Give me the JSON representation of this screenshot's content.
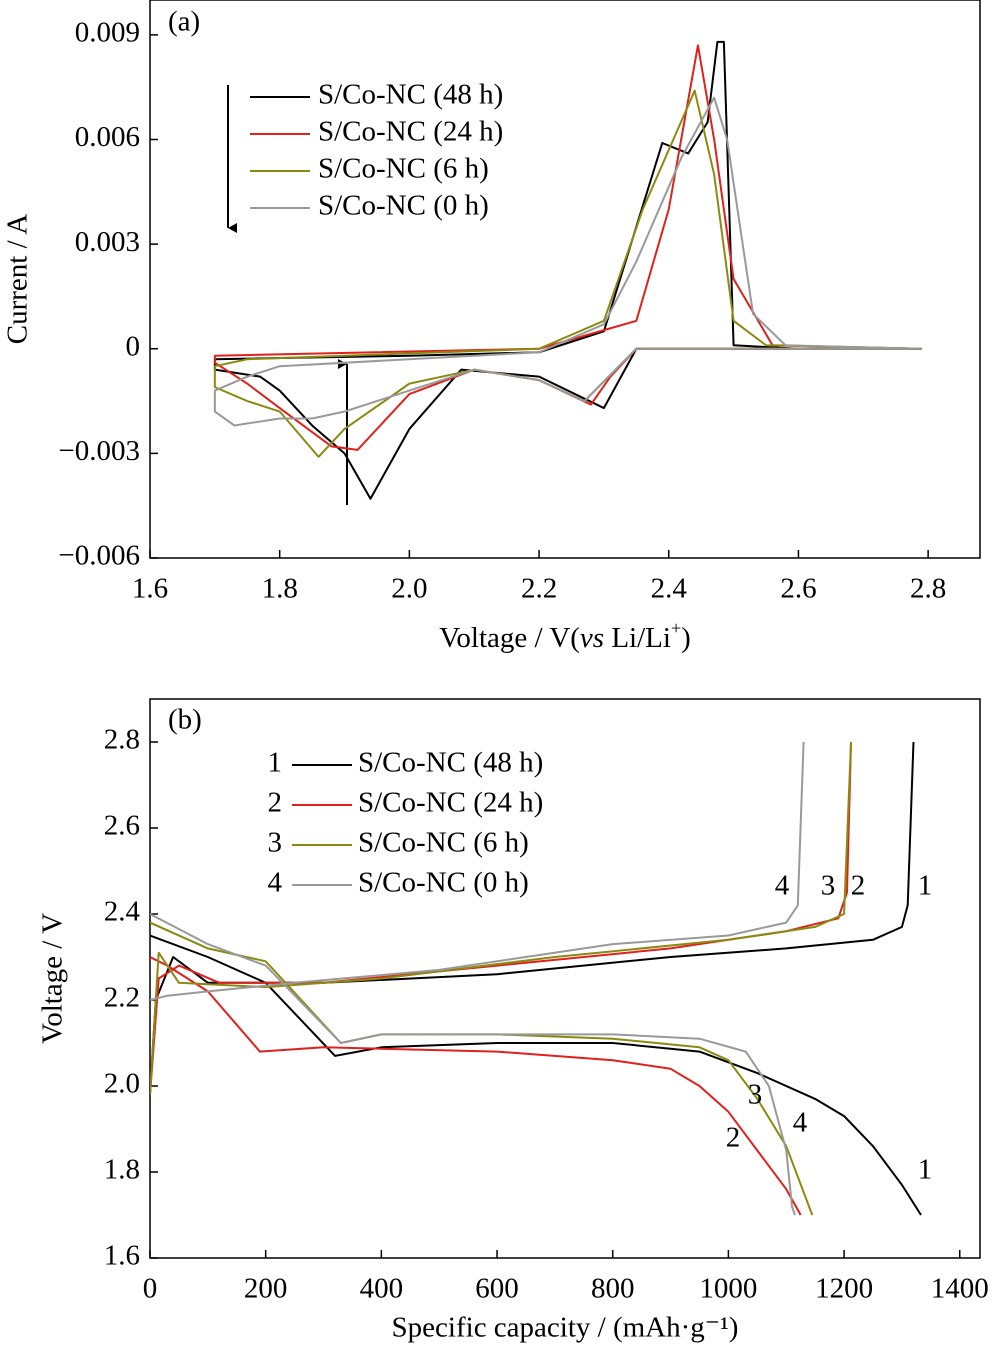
{
  "chart_data": [
    {
      "type": "line",
      "title": "(a)",
      "x_label": [
        "Voltage / V(",
        "vs",
        " Li/Li",
        "+",
        ")"
      ],
      "y_label": "Current / A",
      "xlim": [
        1.6,
        2.88
      ],
      "ylim": [
        -0.006,
        0.01
      ],
      "xticks": [
        1.6,
        1.8,
        {
          "value": 2,
          "label": "2.0"
        },
        2.2,
        2.4,
        2.6,
        2.8
      ],
      "yticks": [
        {
          "value": -0.006,
          "label": "−0.006"
        },
        {
          "value": -0.003,
          "label": "−0.003"
        },
        0,
        0.003,
        0.006,
        0.009
      ],
      "series": [
        {
          "name": "S/Co-NC (48 h)",
          "color": "#000000",
          "x": [
            2.79,
            2.35,
            2.3,
            2.2,
            2.08,
            2.0,
            1.94,
            1.9,
            1.85,
            1.8,
            1.77,
            1.7,
            1.7,
            2.0,
            2.2,
            2.3,
            2.35,
            2.39,
            2.43,
            2.46,
            2.475,
            2.485,
            2.5,
            2.6,
            2.79
          ],
          "values": [
            0,
            0,
            -0.0017,
            -0.0008,
            -0.0006,
            -0.0023,
            -0.0043,
            -0.003,
            -0.0022,
            -0.0012,
            -0.0008,
            -0.0006,
            -0.0003,
            -0.0002,
            -0.0001,
            0.0005,
            0.0035,
            0.0059,
            0.0056,
            0.0065,
            0.0088,
            0.0088,
            0.0001,
            0,
            0
          ]
        },
        {
          "name": "S/Co-NC (24 h)",
          "color": "#e0201c",
          "x": [
            2.79,
            2.35,
            2.31,
            2.28,
            2.2,
            2.1,
            2.0,
            1.92,
            1.88,
            1.8,
            1.75,
            1.7,
            1.7,
            2.2,
            2.35,
            2.4,
            2.445,
            2.47,
            2.5,
            2.56,
            2.79
          ],
          "values": [
            0,
            0,
            -0.0008,
            -0.0016,
            -0.0009,
            -0.0006,
            -0.0013,
            -0.0029,
            -0.0028,
            -0.0017,
            -0.001,
            -0.0004,
            -0.0002,
            0,
            0.0008,
            0.004,
            0.0087,
            0.006,
            0.002,
            0.0001,
            0
          ]
        },
        {
          "name": "S/Co-NC (6 h)",
          "color": "#8b8a10",
          "x": [
            2.79,
            2.35,
            2.27,
            2.2,
            2.1,
            2.0,
            1.9,
            1.86,
            1.8,
            1.75,
            1.7,
            1.7,
            1.75,
            2.2,
            2.3,
            2.36,
            2.44,
            2.47,
            2.5,
            2.55,
            2.79
          ],
          "values": [
            0,
            0,
            -0.0015,
            -0.0009,
            -0.0006,
            -0.001,
            -0.0023,
            -0.0031,
            -0.0018,
            -0.0015,
            -0.0011,
            -0.0005,
            -0.0003,
            0,
            0.0008,
            0.004,
            0.0074,
            0.005,
            0.0008,
            0.0001,
            0
          ]
        },
        {
          "name": "S/Co-NC (0 h)",
          "color": "#999999",
          "x": [
            2.79,
            2.35,
            2.27,
            2.2,
            2.1,
            2.0,
            1.9,
            1.85,
            1.8,
            1.73,
            1.7,
            1.7,
            1.75,
            1.8,
            2.2,
            2.3,
            2.35,
            2.42,
            2.47,
            2.49,
            2.53,
            2.58,
            2.79
          ],
          "values": [
            0,
            0,
            -0.0015,
            -0.0009,
            -0.0006,
            -0.0012,
            -0.0018,
            -0.002,
            -0.002,
            -0.0022,
            -0.0018,
            -0.0012,
            -0.0008,
            -0.0005,
            -0.0001,
            0.0007,
            0.0025,
            0.0055,
            0.0072,
            0.006,
            0.001,
            0.0001,
            0
          ]
        }
      ]
    },
    {
      "type": "line",
      "title": "(b)",
      "x_label": "Specific capacity / (mAh·g⁻¹)",
      "y_label": "Voltage / V",
      "xlim": [
        0,
        1435
      ],
      "ylim": [
        1.6,
        2.9
      ],
      "xticks": [
        0,
        200,
        400,
        600,
        800,
        1000,
        1200,
        1400
      ],
      "yticks": [
        1.6,
        1.8,
        {
          "value": 2,
          "label": "2.0"
        },
        2.2,
        2.4,
        2.6,
        2.8
      ],
      "legend_labels": [
        "1",
        "2",
        "3",
        "4"
      ],
      "annotations": [
        "4",
        "3",
        "2",
        "1",
        "3",
        "4",
        "2",
        "1"
      ],
      "series": [
        {
          "name": "S/Co-NC (48 h)",
          "color": "#000000",
          "x": [
            0,
            100,
            200,
            320,
            400,
            600,
            800,
            950,
            1050,
            1150,
            1200,
            1250,
            1300,
            1333,
            null,
            0,
            10,
            40,
            100,
            300,
            600,
            900,
            1100,
            1250,
            1300,
            1310,
            1320
          ],
          "values": [
            2.35,
            2.3,
            2.24,
            2.07,
            2.09,
            2.1,
            2.1,
            2.08,
            2.03,
            1.97,
            1.93,
            1.86,
            1.77,
            1.7,
            null,
            1.98,
            2.2,
            2.3,
            2.24,
            2.24,
            2.26,
            2.3,
            2.32,
            2.34,
            2.37,
            2.42,
            2.8
          ]
        },
        {
          "name": "S/Co-NC (24 h)",
          "color": "#e0201c",
          "x": [
            0,
            30,
            100,
            190,
            300,
            600,
            800,
            900,
            950,
            1000,
            1050,
            1100,
            1125,
            null,
            0,
            15,
            50,
            120,
            300,
            600,
            900,
            1100,
            1190,
            1205,
            1212
          ],
          "values": [
            2.3,
            2.28,
            2.22,
            2.08,
            2.09,
            2.08,
            2.06,
            2.04,
            2.0,
            1.94,
            1.85,
            1.76,
            1.7,
            null,
            1.98,
            2.25,
            2.28,
            2.24,
            2.24,
            2.28,
            2.32,
            2.36,
            2.39,
            2.45,
            2.8
          ]
        },
        {
          "name": "S/Co-NC (6 h)",
          "color": "#8b8a10",
          "x": [
            0,
            100,
            200,
            330,
            400,
            600,
            800,
            950,
            1000,
            1050,
            1100,
            1145,
            null,
            0,
            15,
            50,
            200,
            400,
            700,
            1000,
            1150,
            1200,
            1212
          ],
          "values": [
            2.38,
            2.32,
            2.29,
            2.1,
            2.12,
            2.12,
            2.11,
            2.09,
            2.06,
            1.97,
            1.86,
            1.7,
            null,
            1.98,
            2.31,
            2.24,
            2.23,
            2.25,
            2.3,
            2.34,
            2.37,
            2.4,
            2.8
          ]
        },
        {
          "name": "S/Co-NC (0 h)",
          "color": "#999999",
          "x": [
            0,
            100,
            200,
            330,
            400,
            600,
            800,
            950,
            1030,
            1070,
            1100,
            1110,
            1115,
            null,
            0,
            30,
            100,
            250,
            500,
            800,
            1000,
            1100,
            1120,
            1130
          ],
          "values": [
            2.4,
            2.33,
            2.28,
            2.1,
            2.12,
            2.12,
            2.12,
            2.11,
            2.08,
            2.0,
            1.85,
            1.72,
            1.7,
            null,
            2.2,
            2.21,
            2.22,
            2.24,
            2.27,
            2.33,
            2.35,
            2.38,
            2.42,
            2.8
          ]
        }
      ]
    }
  ]
}
